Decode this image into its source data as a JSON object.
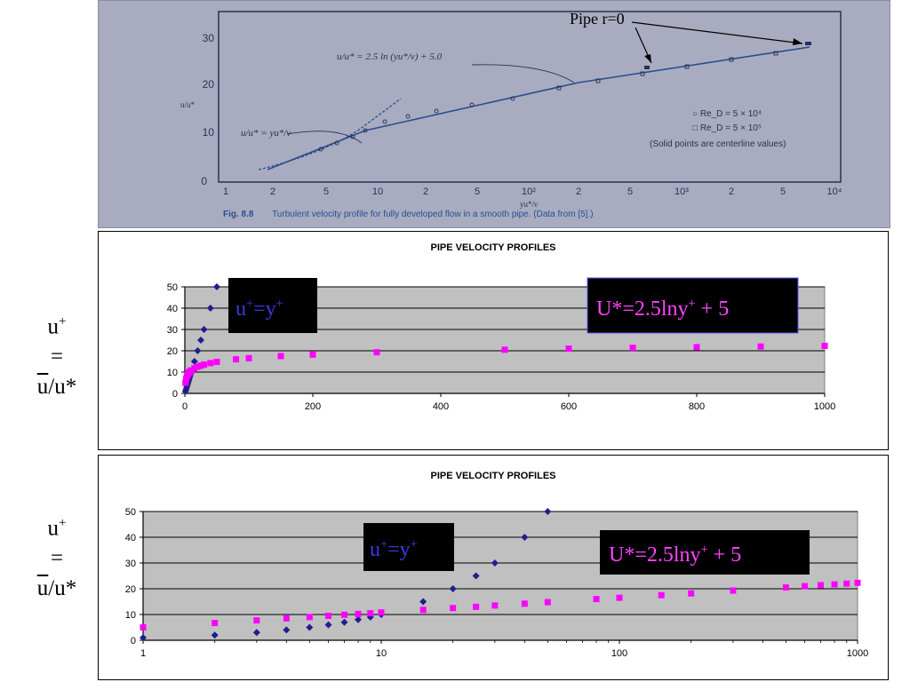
{
  "side_labels": [
    {
      "line1": "u",
      "sup": "+",
      "eq": "=",
      "ubar": "u",
      "rest": "/u*"
    },
    {
      "line1": "u",
      "sup": "+",
      "eq": "=",
      "ubar": "u",
      "rest": "/u*"
    }
  ],
  "scanned_figure": {
    "annotation": "Pipe r=0",
    "y_ticks": [
      "0",
      "10",
      "20",
      "30"
    ],
    "x_ticks": [
      "1",
      "2",
      "5",
      "10",
      "2",
      "5",
      "10²",
      "2",
      "5",
      "10³",
      "2",
      "5",
      "10⁴"
    ],
    "formula_log": "u/u* = 2.5 ln (yu*/ν) + 5.0",
    "formula_linear": "u/u* = yu*/ν",
    "x_axis_label": "yu*/ν",
    "y_axis_label": "u/u*",
    "legend": [
      "○ Re_D = 5 × 10⁴",
      "□ Re_D = 5 × 10⁵",
      "(Solid points are centerline values)"
    ],
    "caption_bold": "Fig. 8.8",
    "caption": "Turbulent velocity profile for fully developed flow in a smooth pipe. (Data from [5].)",
    "colors": {
      "paper": "#a9acc0",
      "ink": "#2b2f55",
      "line": "#2a4d8f"
    }
  },
  "chart_data": [
    {
      "type": "scatter",
      "title": "PIPE VELOCITY PROFILES",
      "x_scale": "linear",
      "xlim": [
        0,
        1000
      ],
      "ylim": [
        0,
        50
      ],
      "x_ticks": [
        "0",
        "200",
        "400",
        "600",
        "800",
        "1000"
      ],
      "y_ticks": [
        "0",
        "10",
        "20",
        "30",
        "40",
        "50"
      ],
      "grid": true,
      "series": [
        {
          "color": "#1f1f8c",
          "marker": "diamond",
          "x": [
            1,
            2,
            3,
            4,
            5,
            6,
            7,
            8,
            9,
            10,
            15,
            20,
            25,
            30,
            40,
            50
          ],
          "y": [
            1,
            2,
            3,
            4,
            5,
            6,
            7,
            8,
            9,
            10,
            15,
            20,
            25,
            30,
            40,
            50
          ]
        },
        {
          "color": "#ff00ff",
          "marker": "square",
          "x": [
            1,
            2,
            3,
            4,
            5,
            6,
            7,
            8,
            9,
            10,
            15,
            20,
            25,
            30,
            40,
            50,
            80,
            100,
            150,
            200,
            300,
            500,
            600,
            700,
            800,
            900,
            1000
          ],
          "y": [
            5,
            6.7,
            7.7,
            8.5,
            9.0,
            9.5,
            9.9,
            10.2,
            10.5,
            10.8,
            11.8,
            12.5,
            13.0,
            13.5,
            14.2,
            14.8,
            16.0,
            16.5,
            17.5,
            18.2,
            19.3,
            20.5,
            21.0,
            21.4,
            21.7,
            22.0,
            22.3
          ]
        }
      ],
      "annotations": [
        {
          "text_base": "u",
          "sup1": "+",
          "mid": "=y",
          "sup2": "+",
          "color": "#3a3adf"
        },
        {
          "text_base": "U*=2.5lny",
          "sup1": "+",
          "mid": " + 5",
          "sup2": "",
          "color": "#ff44ff"
        }
      ]
    },
    {
      "type": "scatter",
      "title": "PIPE VELOCITY PROFILES",
      "x_scale": "log",
      "xlim": [
        1,
        1000
      ],
      "ylim": [
        0,
        50
      ],
      "x_ticks": [
        "1",
        "10",
        "100",
        "1000"
      ],
      "y_ticks": [
        "0",
        "10",
        "20",
        "30",
        "40",
        "50"
      ],
      "grid": true,
      "series": [
        {
          "color": "#1f1f8c",
          "marker": "diamond",
          "x": [
            1,
            2,
            3,
            4,
            5,
            6,
            7,
            8,
            9,
            10,
            15,
            20,
            25,
            30,
            40,
            50
          ],
          "y": [
            1,
            2,
            3,
            4,
            5,
            6,
            7,
            8,
            9,
            10,
            15,
            20,
            25,
            30,
            40,
            50
          ]
        },
        {
          "color": "#ff00ff",
          "marker": "square",
          "x": [
            1,
            2,
            3,
            4,
            5,
            6,
            7,
            8,
            9,
            10,
            15,
            20,
            25,
            30,
            40,
            50,
            80,
            100,
            150,
            200,
            300,
            500,
            600,
            700,
            800,
            900,
            1000
          ],
          "y": [
            5,
            6.7,
            7.7,
            8.5,
            9.0,
            9.5,
            9.9,
            10.2,
            10.5,
            10.8,
            11.8,
            12.5,
            13.0,
            13.5,
            14.2,
            14.8,
            16.0,
            16.5,
            17.5,
            18.2,
            19.3,
            20.5,
            21.0,
            21.4,
            21.7,
            22.0,
            22.3
          ]
        }
      ],
      "annotations": [
        {
          "text_base": "u",
          "sup1": "+",
          "mid": "=y",
          "sup2": "+",
          "color": "#3a3adf"
        },
        {
          "text_base": "U*=2.5lny",
          "sup1": "+",
          "mid": " + 5",
          "sup2": "",
          "color": "#ff44ff"
        }
      ]
    }
  ]
}
